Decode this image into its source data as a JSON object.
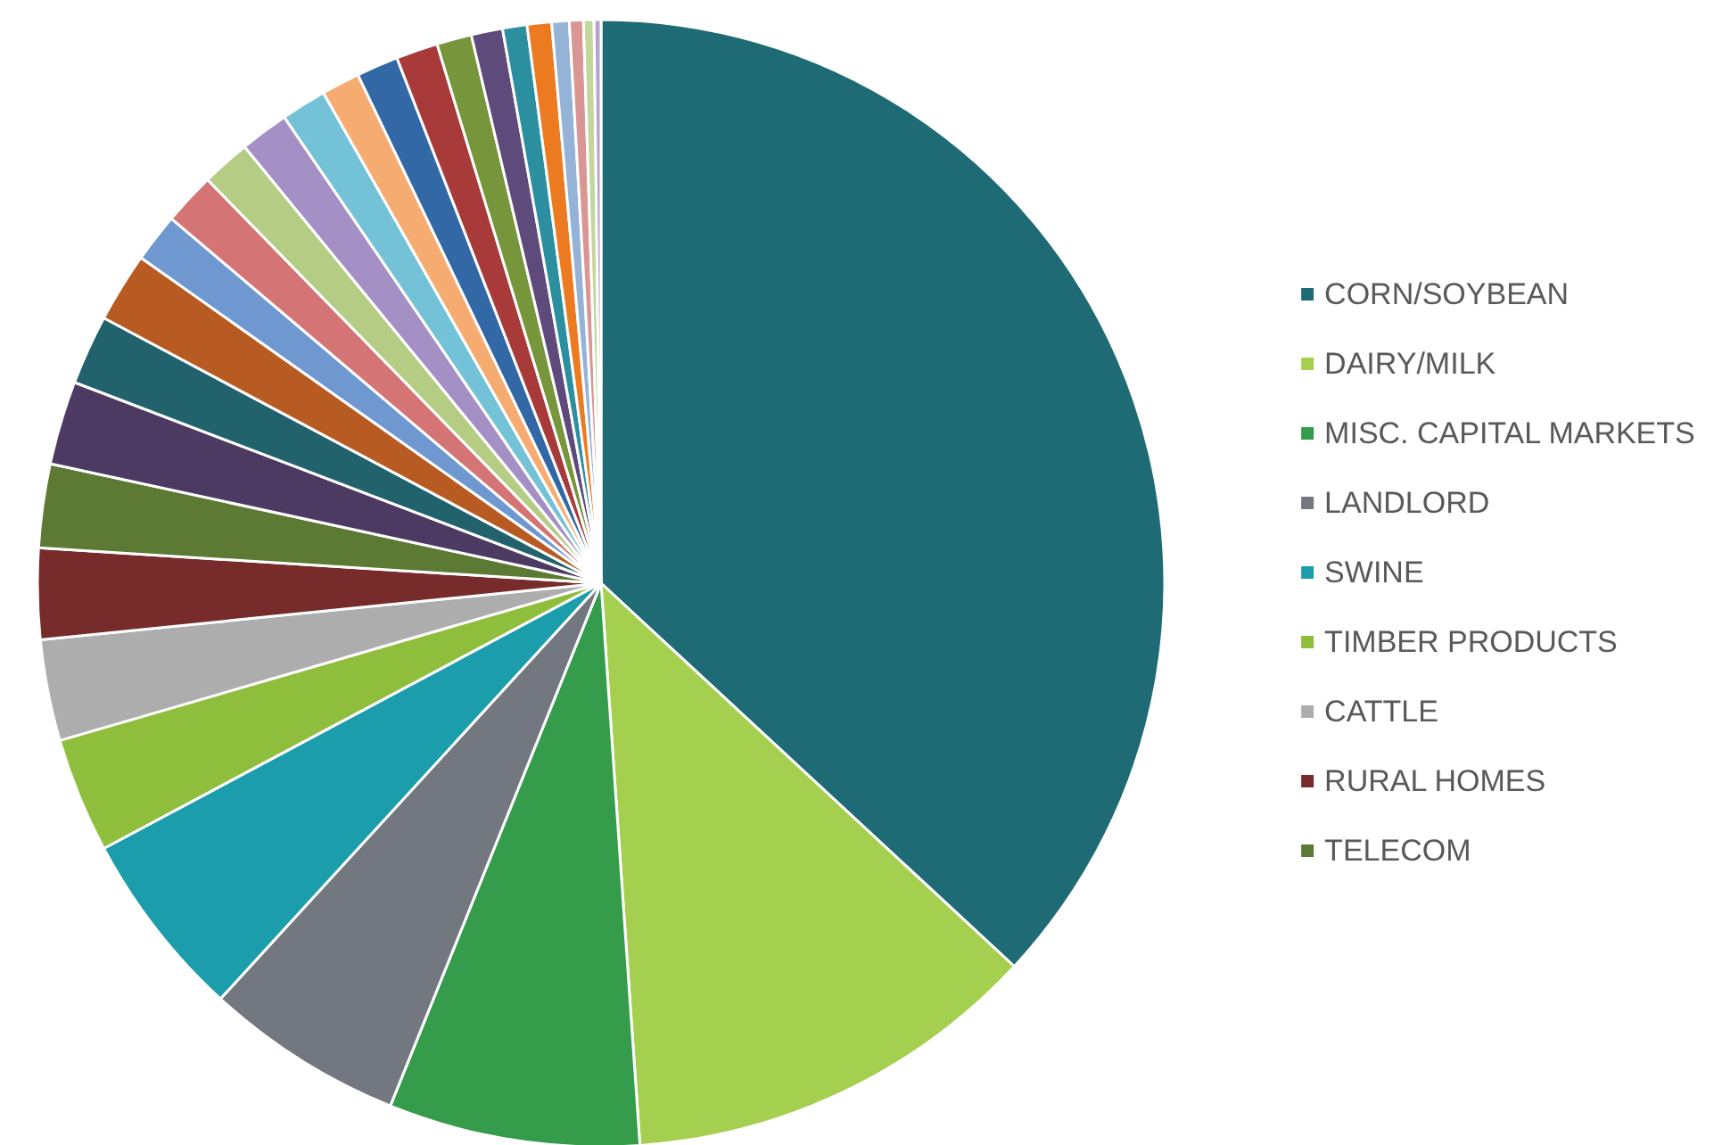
{
  "chart_data": {
    "type": "pie",
    "legend": "right",
    "categories": [
      "CORN/SOYBEAN",
      "DAIRY/MILK",
      "MISC. CAPITAL MARKETS",
      "LANDLORD",
      "SWINE",
      "TIMBER PRODUCTS",
      "CATTLE",
      "RURAL HOMES",
      "TELECOM",
      null,
      null,
      null,
      null,
      null,
      null,
      null,
      null,
      null,
      null,
      null,
      null,
      null,
      null,
      null,
      null,
      null,
      null,
      null
    ],
    "values": [
      36.9,
      12.0,
      7.2,
      5.7,
      5.4,
      3.3,
      2.9,
      2.6,
      2.4,
      2.4,
      2.0,
      2.0,
      1.4,
      1.5,
      1.4,
      1.4,
      1.3,
      1.1,
      1.2,
      1.2,
      1.0,
      0.9,
      0.7,
      0.7,
      0.5,
      0.4,
      0.3,
      0.2
    ],
    "colors": [
      "#1f6b75",
      "#a5cf4f",
      "#349c4a",
      "#737780",
      "#1b9dab",
      "#8fbe3c",
      "#adadad",
      "#772b2a",
      "#5c7a34",
      "#4c3a63",
      "#22626c",
      "#b85b22",
      "#6e98cf",
      "#d47475",
      "#b5cc84",
      "#a590c6",
      "#74c2d7",
      "#f6ab71",
      "#3168a5",
      "#a83a3a",
      "#77953a",
      "#5f4a7c",
      "#2c8fa0",
      "#ec7a21",
      "#95b3d7",
      "#d99694",
      "#c3d69b",
      "#b7a3d0"
    ]
  }
}
